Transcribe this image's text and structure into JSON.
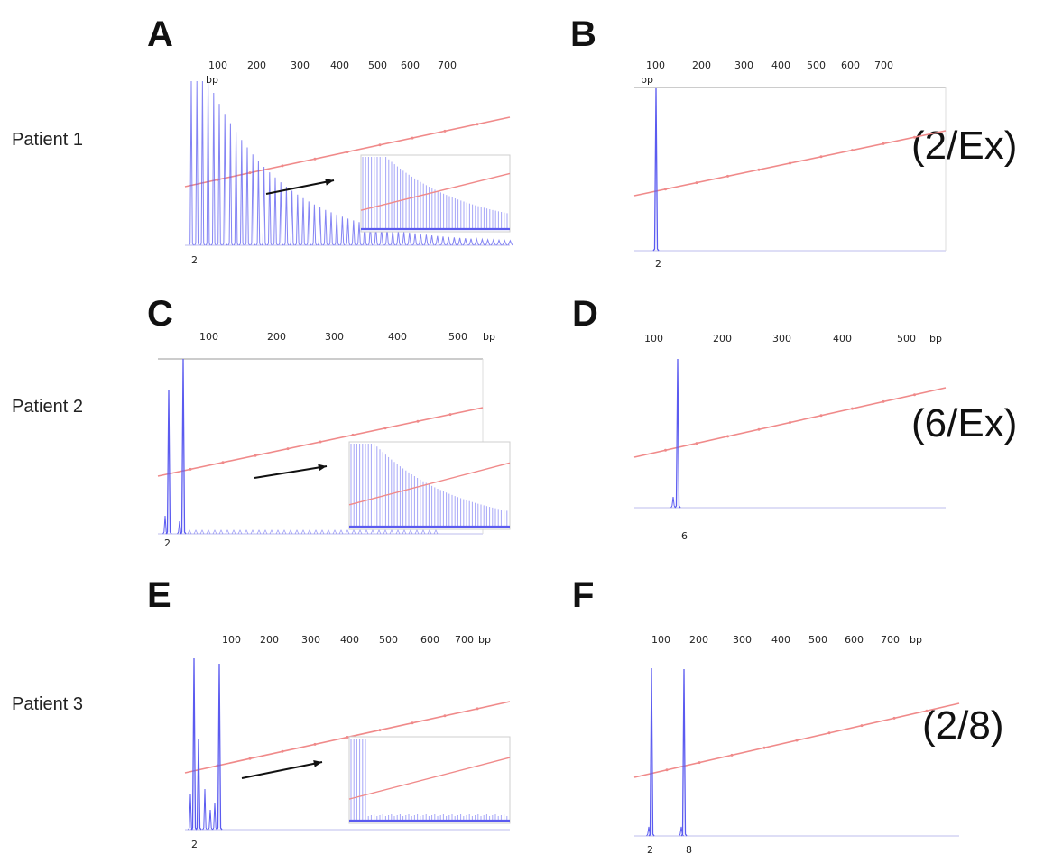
{
  "labels": {
    "A": "A",
    "B": "B",
    "C": "C",
    "D": "D",
    "E": "E",
    "F": "F",
    "patient1": "Patient 1",
    "patient2": "Patient 2",
    "patient3": "Patient 3"
  },
  "genotypes": {
    "B": "(2/Ex)",
    "D": "(6/Ex)",
    "F": "(2/8)"
  },
  "colors": {
    "trace": "#5b5bf0",
    "size_standard": "#f08a8a",
    "frame": "#9a9a9a"
  },
  "chart_data": [
    {
      "id": "A",
      "type": "line",
      "tick_labels": [
        "100",
        "200",
        "300",
        "400",
        "500",
        "600",
        "700"
      ],
      "axis_unit": "bp",
      "pattern": "ladder",
      "peak_labels": [
        "2"
      ],
      "has_zoom_inset": true
    },
    {
      "id": "B",
      "type": "line",
      "tick_labels": [
        "100",
        "200",
        "300",
        "400",
        "500",
        "600",
        "700"
      ],
      "axis_unit": "bp",
      "pattern": "single",
      "peak_labels": [
        "2"
      ],
      "has_zoom_inset": false
    },
    {
      "id": "C",
      "type": "line",
      "tick_labels": [
        "100",
        "200",
        "300",
        "400",
        "500"
      ],
      "axis_unit": "bp",
      "pattern": "double-ladder",
      "peak_labels": [
        "2"
      ],
      "has_zoom_inset": true
    },
    {
      "id": "D",
      "type": "line",
      "tick_labels": [
        "100",
        "200",
        "300",
        "400",
        "500"
      ],
      "axis_unit": "bp",
      "pattern": "single",
      "peak_labels": [
        "6"
      ],
      "has_zoom_inset": false
    },
    {
      "id": "E",
      "type": "line",
      "tick_labels": [
        "100",
        "200",
        "300",
        "400",
        "500",
        "600",
        "700"
      ],
      "axis_unit": "bp",
      "pattern": "double-ladder",
      "peak_labels": [
        "2"
      ],
      "has_zoom_inset": true
    },
    {
      "id": "F",
      "type": "line",
      "tick_labels": [
        "100",
        "200",
        "300",
        "400",
        "500",
        "600",
        "700"
      ],
      "axis_unit": "bp",
      "pattern": "double",
      "peak_labels": [
        "2",
        "8"
      ],
      "has_zoom_inset": false
    }
  ]
}
